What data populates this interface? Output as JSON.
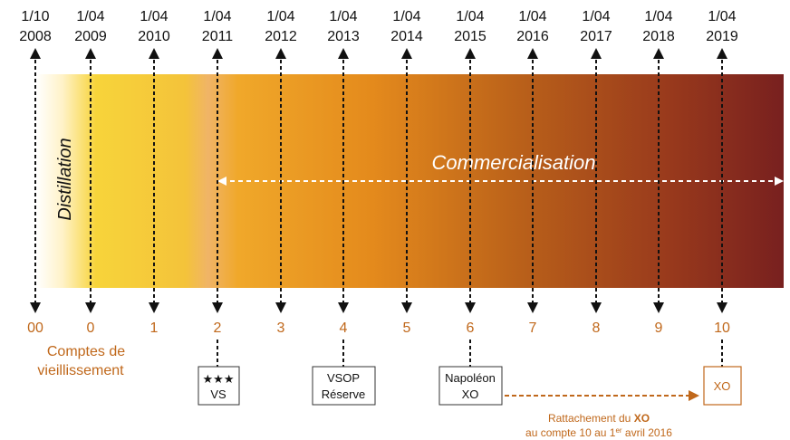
{
  "dates": [
    {
      "day": "1/10",
      "year": "2008"
    },
    {
      "day": "1/04",
      "year": "2009"
    },
    {
      "day": "1/04",
      "year": "2010"
    },
    {
      "day": "1/04",
      "year": "2011"
    },
    {
      "day": "1/04",
      "year": "2012"
    },
    {
      "day": "1/04",
      "year": "2013"
    },
    {
      "day": "1/04",
      "year": "2014"
    },
    {
      "day": "1/04",
      "year": "2015"
    },
    {
      "day": "1/04",
      "year": "2016"
    },
    {
      "day": "1/04",
      "year": "2017"
    },
    {
      "day": "1/04",
      "year": "2018"
    },
    {
      "day": "1/04",
      "year": "2019"
    }
  ],
  "counts": [
    "00",
    "0",
    "1",
    "2",
    "3",
    "4",
    "5",
    "6",
    "7",
    "8",
    "9",
    "10"
  ],
  "counts_label": {
    "line1": "Comptes de",
    "line2": "vieillissement"
  },
  "distillation_label": "Distillation",
  "commercialisation_label": "Commercialisation",
  "grades": [
    {
      "count": "2",
      "line1": "★★★",
      "line2": "VS"
    },
    {
      "count": "4",
      "line1": "VSOP",
      "line2": "Réserve"
    },
    {
      "count": "6",
      "line1": "Napoléon",
      "line2": "XO"
    },
    {
      "count": "10",
      "line1": "XO",
      "line2": ""
    }
  ],
  "note": {
    "prefix": "Rattachement du ",
    "bold": "XO",
    "line2_prefix": "au compte 10 au 1",
    "superscript": "er",
    "line2_suffix": " avril 2016"
  },
  "colors": {
    "accent": "#c0681b",
    "text": "#111111",
    "gradient": [
      "#f6d23a",
      "#f2ad2c",
      "#e48a1c",
      "#b5561c",
      "#7a1f20"
    ]
  }
}
